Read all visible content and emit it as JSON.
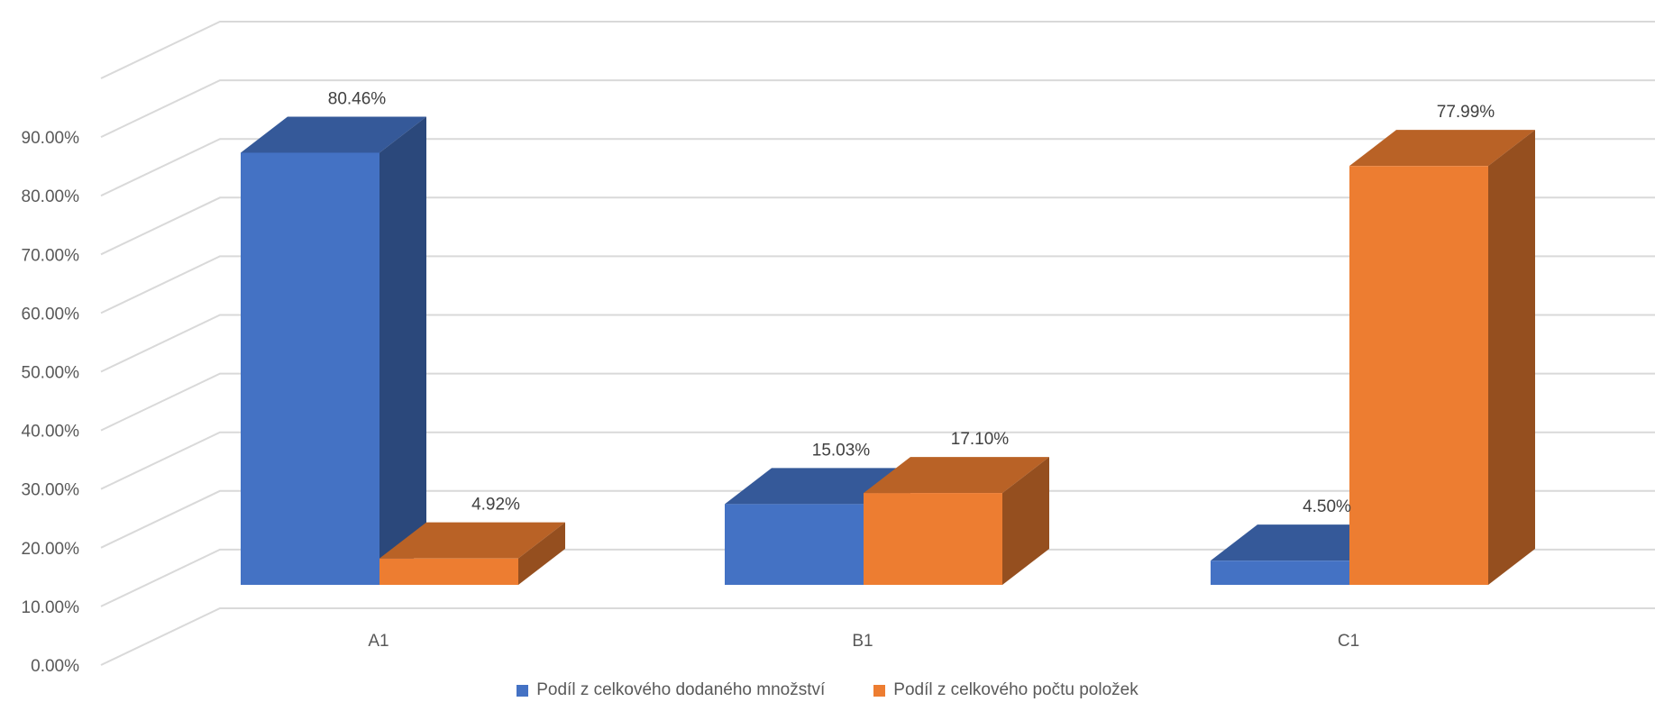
{
  "chart_data": {
    "type": "bar",
    "variant": "3d-clustered-column",
    "title": "",
    "xlabel": "",
    "ylabel": "",
    "categories": [
      "A1",
      "B1",
      "C1"
    ],
    "series": [
      {
        "name": "Podíl z celkového dodaného množství",
        "values": [
          80.46,
          15.03,
          4.5
        ],
        "labels": [
          "80.46%",
          "15.03%",
          "4.50%"
        ],
        "color": "#4472C4"
      },
      {
        "name": "Podíl z celkového počtu položek",
        "values": [
          4.92,
          17.1,
          77.99
        ],
        "labels": [
          "4.92%",
          "17.10%",
          "77.99%"
        ],
        "color": "#ED7D31"
      }
    ],
    "y_ticks": [
      "0.00%",
      "10.00%",
      "20.00%",
      "30.00%",
      "40.00%",
      "50.00%",
      "60.00%",
      "70.00%",
      "80.00%",
      "90.00%"
    ],
    "ylim": [
      0,
      100
    ],
    "grid": true,
    "legend_position": "bottom"
  }
}
